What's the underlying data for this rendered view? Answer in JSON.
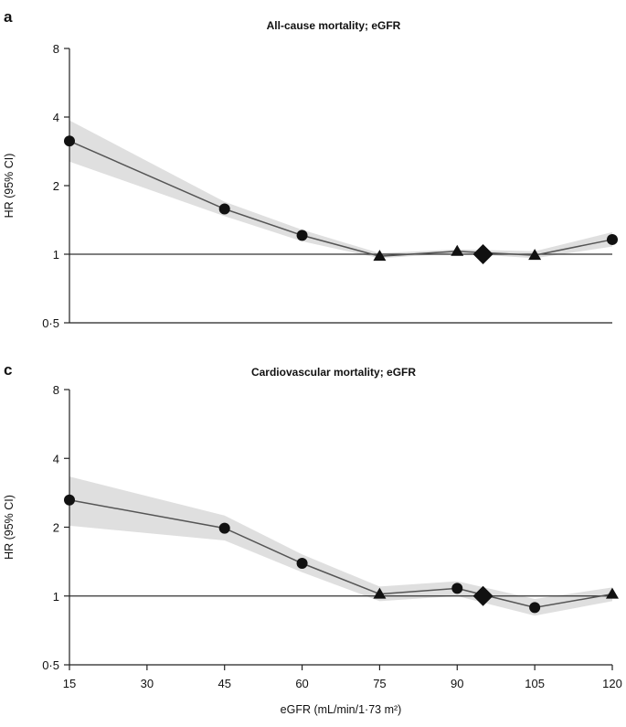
{
  "chart_data": [
    {
      "type": "line",
      "panel_label": "a",
      "title": "All-cause mortality; eGFR",
      "ylabel": "HR (95% CI)",
      "xlabel": "",
      "y_scale": "log2",
      "ylim": [
        0.5,
        8
      ],
      "yticks": [
        {
          "value": 0.5,
          "label": "0·5"
        },
        {
          "value": 1,
          "label": "1"
        },
        {
          "value": 2,
          "label": "2"
        },
        {
          "value": 4,
          "label": "4"
        },
        {
          "value": 8,
          "label": "8"
        }
      ],
      "xlim": [
        15,
        120
      ],
      "xticks": [],
      "reference_line": 1,
      "reference_point": {
        "x": 95,
        "y": 1,
        "marker": "diamond"
      },
      "points": [
        {
          "x": 15,
          "y": 3.14,
          "lo": 2.55,
          "hi": 3.87,
          "marker": "circle"
        },
        {
          "x": 45,
          "y": 1.58,
          "lo": 1.47,
          "hi": 1.7,
          "marker": "circle"
        },
        {
          "x": 60,
          "y": 1.21,
          "lo": 1.14,
          "hi": 1.28,
          "marker": "circle"
        },
        {
          "x": 75,
          "y": 0.98,
          "lo": 0.96,
          "hi": 1.01,
          "marker": "triangle"
        },
        {
          "x": 90,
          "y": 1.03,
          "lo": 1.01,
          "hi": 1.05,
          "marker": "triangle"
        },
        {
          "x": 105,
          "y": 0.99,
          "lo": 0.96,
          "hi": 1.03,
          "marker": "triangle"
        },
        {
          "x": 120,
          "y": 1.16,
          "lo": 1.08,
          "hi": 1.25,
          "marker": "circle"
        }
      ]
    },
    {
      "type": "line",
      "panel_label": "c",
      "title": "Cardiovascular mortality; eGFR",
      "ylabel": "HR (95% CI)",
      "xlabel": "eGFR (mL/min/1·73 m²)",
      "y_scale": "log2",
      "ylim": [
        0.5,
        8
      ],
      "yticks": [
        {
          "value": 0.5,
          "label": "0·5"
        },
        {
          "value": 1,
          "label": "1"
        },
        {
          "value": 2,
          "label": "2"
        },
        {
          "value": 4,
          "label": "4"
        },
        {
          "value": 8,
          "label": "8"
        }
      ],
      "xlim": [
        15,
        120
      ],
      "xticks": [
        {
          "value": 15,
          "label": "15"
        },
        {
          "value": 30,
          "label": "30"
        },
        {
          "value": 45,
          "label": "45"
        },
        {
          "value": 60,
          "label": "60"
        },
        {
          "value": 75,
          "label": "75"
        },
        {
          "value": 90,
          "label": "90"
        },
        {
          "value": 105,
          "label": "105"
        },
        {
          "value": 120,
          "label": "120"
        }
      ],
      "reference_line": 1,
      "reference_point": {
        "x": 95,
        "y": 1,
        "marker": "diamond"
      },
      "points": [
        {
          "x": 15,
          "y": 2.63,
          "lo": 2.03,
          "hi": 3.33,
          "marker": "circle"
        },
        {
          "x": 45,
          "y": 1.98,
          "lo": 1.75,
          "hi": 2.25,
          "marker": "circle"
        },
        {
          "x": 60,
          "y": 1.39,
          "lo": 1.27,
          "hi": 1.52,
          "marker": "circle"
        },
        {
          "x": 75,
          "y": 1.02,
          "lo": 0.95,
          "hi": 1.1,
          "marker": "triangle"
        },
        {
          "x": 90,
          "y": 1.08,
          "lo": 1.0,
          "hi": 1.16,
          "marker": "circle"
        },
        {
          "x": 105,
          "y": 0.89,
          "lo": 0.82,
          "hi": 0.97,
          "marker": "circle"
        },
        {
          "x": 120,
          "y": 1.02,
          "lo": 0.95,
          "hi": 1.09,
          "marker": "triangle"
        }
      ]
    }
  ]
}
